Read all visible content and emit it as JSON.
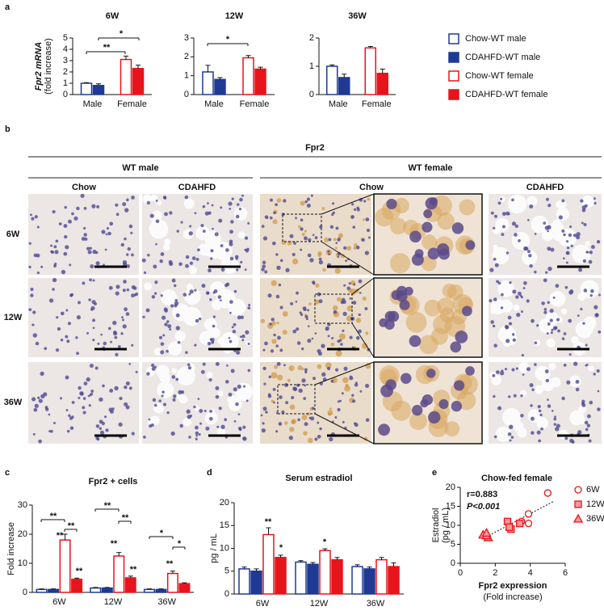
{
  "panels": [
    "a",
    "b",
    "c",
    "d",
    "e"
  ],
  "histology": {
    "title": "Fpr2",
    "groups": [
      "WT male",
      "WT female"
    ],
    "columns": [
      "Chow",
      "CDAHFD",
      "Chow",
      "CDAHFD"
    ],
    "rows": [
      "6W",
      "12W",
      "36W"
    ]
  },
  "chart_data": [
    {
      "type": "bar",
      "title": "6W",
      "ylabel": "Fpr2 mRNA",
      "ylabel_sub": "(fold increase)",
      "categories": [
        "Male",
        "Female"
      ],
      "ylim": [
        0,
        5
      ],
      "yticks": [
        0,
        1,
        2,
        3,
        4,
        5
      ],
      "series": [
        {
          "name": "Chow-WT male",
          "color": "#1f3a93",
          "filled": false,
          "values": [
            1.0,
            null
          ],
          "errors": [
            0.05,
            null
          ]
        },
        {
          "name": "CDAHFD-WT male",
          "color": "#1f3a93",
          "filled": true,
          "values": [
            0.8,
            null
          ],
          "errors": [
            0.15,
            null
          ]
        },
        {
          "name": "Chow-WT female",
          "color": "#e8141c",
          "filled": false,
          "values": [
            null,
            3.1
          ],
          "errors": [
            null,
            0.3
          ]
        },
        {
          "name": "CDAHFD-WT female",
          "color": "#e8141c",
          "filled": true,
          "values": [
            null,
            2.3
          ],
          "errors": [
            null,
            0.3
          ]
        }
      ],
      "annotations": [
        "**",
        "*"
      ]
    },
    {
      "type": "bar",
      "title": "12W",
      "categories": [
        "Male",
        "Female"
      ],
      "ylim": [
        0,
        3
      ],
      "yticks": [
        0,
        1,
        2,
        3
      ],
      "series": [
        {
          "color": "#1f3a93",
          "filled": false,
          "values": [
            1.2,
            null
          ],
          "errors": [
            0.35,
            null
          ]
        },
        {
          "color": "#1f3a93",
          "filled": true,
          "values": [
            0.8,
            null
          ],
          "errors": [
            0.1,
            null
          ]
        },
        {
          "color": "#e8141c",
          "filled": false,
          "values": [
            null,
            1.95
          ],
          "errors": [
            null,
            0.12
          ]
        },
        {
          "color": "#e8141c",
          "filled": true,
          "values": [
            null,
            1.35
          ],
          "errors": [
            null,
            0.1
          ]
        }
      ],
      "annotations": [
        "*"
      ]
    },
    {
      "type": "bar",
      "title": "36W",
      "categories": [
        "Male",
        "Female"
      ],
      "ylim": [
        0,
        2
      ],
      "yticks": [
        0,
        1,
        2
      ],
      "series": [
        {
          "color": "#1f3a93",
          "filled": false,
          "values": [
            1.0,
            null
          ],
          "errors": [
            0.05,
            null
          ]
        },
        {
          "color": "#1f3a93",
          "filled": true,
          "values": [
            0.6,
            null
          ],
          "errors": [
            0.12,
            null
          ]
        },
        {
          "color": "#e8141c",
          "filled": false,
          "values": [
            null,
            1.65
          ],
          "errors": [
            null,
            0.05
          ]
        },
        {
          "color": "#e8141c",
          "filled": true,
          "values": [
            null,
            0.75
          ],
          "errors": [
            null,
            0.15
          ]
        }
      ],
      "annotations": []
    },
    {
      "type": "bar",
      "title": "Fpr2 + cells",
      "ylabel": "Fold increase",
      "categories": [
        "6W",
        "12W",
        "36W"
      ],
      "ylim": [
        0,
        30
      ],
      "yticks": [
        0,
        10,
        20,
        30
      ],
      "series": [
        {
          "color": "#1f3a93",
          "filled": false,
          "values": [
            1.0,
            1.5,
            1.0
          ],
          "errors": [
            0.2,
            0.2,
            0.2
          ]
        },
        {
          "color": "#1f3a93",
          "filled": true,
          "values": [
            1.0,
            1.5,
            1.0
          ],
          "errors": [
            0.2,
            0.2,
            0.2
          ]
        },
        {
          "color": "#e8141c",
          "filled": false,
          "values": [
            18,
            12.5,
            6.5
          ],
          "errors": [
            2,
            1.2,
            0.8
          ]
        },
        {
          "color": "#e8141c",
          "filled": true,
          "values": [
            4.5,
            5,
            3
          ],
          "errors": [
            0.4,
            0.6,
            0.3
          ]
        }
      ],
      "annotations": [
        "**",
        "**",
        "**",
        "**",
        "**",
        "**",
        "**",
        "**",
        "*",
        "*",
        "**"
      ]
    },
    {
      "type": "bar",
      "title": "Serum estradiol",
      "ylabel": "pg / mL",
      "categories": [
        "6W",
        "12W",
        "36W"
      ],
      "ylim": [
        0,
        20
      ],
      "yticks": [
        0,
        5,
        10,
        15,
        20
      ],
      "series": [
        {
          "color": "#1f3a93",
          "filled": false,
          "values": [
            5.5,
            7,
            6
          ],
          "errors": [
            0.4,
            0.3,
            0.4
          ]
        },
        {
          "color": "#1f3a93",
          "filled": true,
          "values": [
            5,
            6.5,
            5.5
          ],
          "errors": [
            0.5,
            0.4,
            0.4
          ]
        },
        {
          "color": "#e8141c",
          "filled": false,
          "values": [
            13,
            9.5,
            7.5
          ],
          "errors": [
            1.5,
            0.4,
            0.5
          ]
        },
        {
          "color": "#e8141c",
          "filled": true,
          "values": [
            8,
            7.5,
            6
          ],
          "errors": [
            0.5,
            0.5,
            0.8
          ]
        }
      ],
      "annotations": [
        "**",
        "*",
        "*"
      ]
    },
    {
      "type": "scatter",
      "title": "Chow-fed female",
      "xlabel": "Fpr2 expression",
      "xlabel_sub": "(Fold increase)",
      "ylabel": "Estradiol",
      "ylabel_sub": "(pg / mL)",
      "xlim": [
        0,
        6
      ],
      "xticks": [
        0,
        2,
        4,
        6
      ],
      "ylim": [
        0,
        20
      ],
      "yticks": [
        0,
        5,
        10,
        15,
        20
      ],
      "series": [
        {
          "name": "6W",
          "color": "#e8141c",
          "marker": "circle",
          "filled": false,
          "x": [
            3.5,
            3.9,
            5.0,
            3.9
          ],
          "values": [
            11,
            13,
            18.5,
            10.5
          ]
        },
        {
          "name": "12W",
          "color": "#e8141c",
          "marker": "square",
          "filled": true,
          "x": [
            2.7,
            2.9,
            3.4,
            2.8
          ],
          "values": [
            11,
            9,
            10.5,
            9.5
          ]
        },
        {
          "name": "36W",
          "color": "#e8141c",
          "marker": "triangle",
          "filled": true,
          "x": [
            1.3,
            1.6,
            1.5,
            1.5
          ],
          "values": [
            7.5,
            6.8,
            7.3,
            8
          ]
        }
      ],
      "annotations": [
        "r=0.883",
        "P<0.001"
      ]
    }
  ]
}
